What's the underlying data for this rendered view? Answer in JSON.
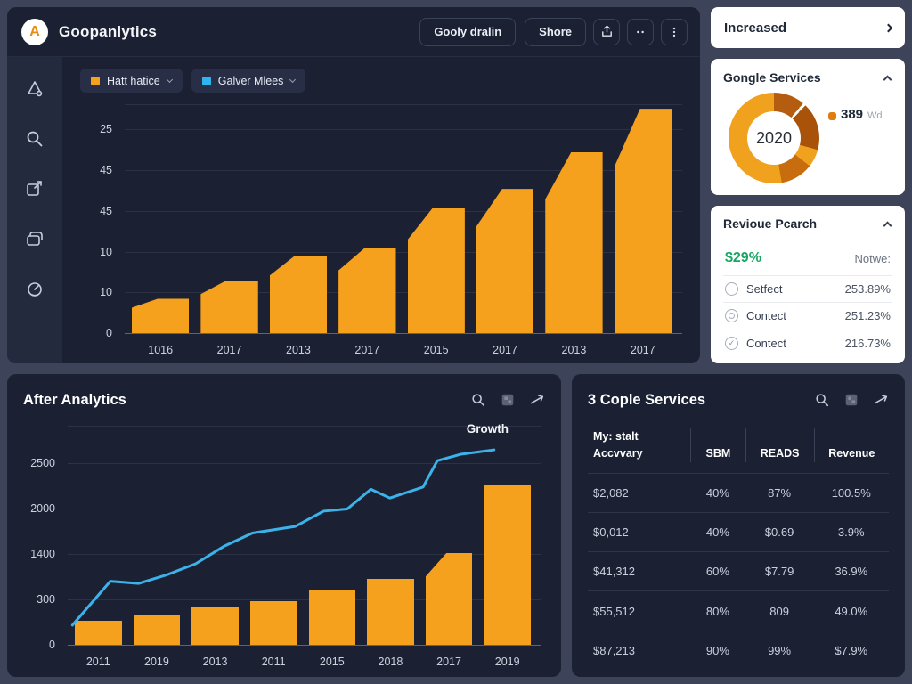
{
  "app": {
    "title": "Goopanlytics",
    "logo_letter": "A"
  },
  "topbar": {
    "button1": "Gooly dralin",
    "button2": "Shore"
  },
  "chips": [
    {
      "label": "Hatt hatice",
      "color": "#f5a11d"
    },
    {
      "label": "Galver Mlees",
      "color": "#2fb4f0"
    }
  ],
  "right_panel": {
    "increased_label": "Increased",
    "services": {
      "title": "Gongle Services",
      "center_label": "2020",
      "legend_value": "389",
      "legend_unit": "Wd",
      "legend_dot_color": "#e07c12"
    },
    "revenue": {
      "title": "Revioue Pcarch",
      "highlight": "$29%",
      "highlight_color": "#17a663",
      "note_label": "Notwe:",
      "rows": [
        {
          "icon": "circle-icon",
          "label": "Setfect",
          "value": "253.89%"
        },
        {
          "icon": "target-icon",
          "label": "Contect",
          "value": "251.23%"
        },
        {
          "icon": "check-circle-icon",
          "label": "Contect",
          "value": "216.73%"
        }
      ]
    }
  },
  "bottom_left": {
    "title": "After Analytics"
  },
  "bottom_right": {
    "title": "3 Cople Services",
    "table": {
      "headers": [
        "My: stalt\nAccvvary",
        "SBM",
        "READS",
        "Revenue"
      ],
      "rows": [
        [
          "$2,082",
          "40%",
          "87%",
          "100.5%"
        ],
        [
          "$0,012",
          "40%",
          "$0.69",
          "3.9%"
        ],
        [
          "$41,312",
          "60%",
          "$7.79",
          "36.9%"
        ],
        [
          "$55,512",
          "80%",
          "809",
          "49.0%"
        ],
        [
          "$87,213",
          "90%",
          "99%",
          "$7.9%"
        ]
      ]
    }
  },
  "chart_data": [
    {
      "id": "overview-bars",
      "type": "bar",
      "categories": [
        "1016",
        "2017",
        "2013",
        "2017",
        "2015",
        "2017",
        "2013",
        "2017"
      ],
      "values": [
        15,
        23,
        34,
        37,
        55,
        63,
        79,
        98
      ],
      "value_unit": "percent-of-plot-height",
      "y_tick_labels": [
        "25",
        "45",
        "45",
        "10",
        "10",
        "0"
      ],
      "bar_color": "#f5a11d",
      "bevel": "all",
      "grid": true,
      "legend": [
        "Hatt hatice",
        "Galver Mlees"
      ],
      "legend_position": "top-left"
    },
    {
      "id": "after-analytics-combo",
      "type": "bar+line",
      "categories": [
        "2011",
        "2019",
        "2013",
        "2011",
        "2015",
        "2018",
        "2017",
        "2019"
      ],
      "bar_values": [
        11,
        14,
        17,
        20,
        25,
        30,
        42,
        73
      ],
      "bevel_indices": [
        6
      ],
      "line_points": [
        [
          1,
          9
        ],
        [
          9,
          29
        ],
        [
          15,
          28
        ],
        [
          21,
          32
        ],
        [
          27,
          37
        ],
        [
          33,
          45
        ],
        [
          39,
          51
        ],
        [
          48,
          54
        ],
        [
          54,
          61
        ],
        [
          59,
          62
        ],
        [
          64,
          71
        ],
        [
          68,
          67
        ],
        [
          75,
          72
        ],
        [
          78,
          84
        ],
        [
          83,
          87
        ],
        [
          90,
          89
        ]
      ],
      "value_unit": "percent-of-plot-height",
      "y_tick_labels": [
        "2500",
        "2000",
        "1400",
        "300",
        "0"
      ],
      "bar_color": "#f5a11d",
      "line_color": "#3bb3ea",
      "line_label": "Growth",
      "grid": true
    },
    {
      "id": "gongle-services-donut",
      "type": "pie",
      "center_label": "2020",
      "segments": [
        {
          "color": "#b45c10",
          "from_deg": 0,
          "to_deg": 40
        },
        {
          "color": "#ffffff",
          "from_deg": 40,
          "to_deg": 44
        },
        {
          "color": "#a8520a",
          "from_deg": 44,
          "to_deg": 105
        },
        {
          "color": "#f0a11e",
          "from_deg": 105,
          "to_deg": 128
        },
        {
          "color": "#c76d0e",
          "from_deg": 128,
          "to_deg": 170
        },
        {
          "color": "#f0a11e",
          "from_deg": 170,
          "to_deg": 360
        }
      ],
      "legend_value": "389",
      "legend_unit": "Wd"
    }
  ]
}
